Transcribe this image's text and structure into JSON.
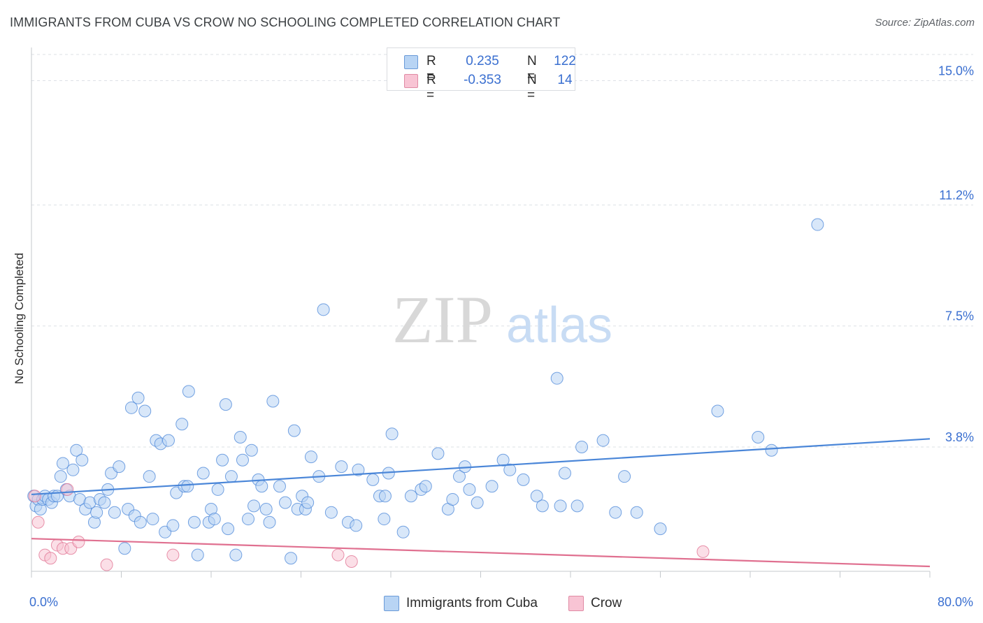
{
  "header": {
    "title": "IMMIGRANTS FROM CUBA VS CROW NO SCHOOLING COMPLETED CORRELATION CHART",
    "source": "Source: ZipAtlas.com"
  },
  "watermark": {
    "zip": "ZIP",
    "atlas": "atlas"
  },
  "legend": {
    "rows": [
      {
        "r_label": "R =",
        "r_value": "0.235",
        "n_label": "N =",
        "n_value": "122",
        "color": "#a8c8f0"
      },
      {
        "r_label": "R =",
        "r_value": "-0.353",
        "n_label": "N =",
        "n_value": "14",
        "color": "#f6b8c8"
      }
    ]
  },
  "bottom_legend": [
    {
      "label": "Immigrants from Cuba",
      "color": "#a8c8f0"
    },
    {
      "label": "Crow",
      "color": "#f6b8c8"
    }
  ],
  "chart_data": {
    "type": "scatter",
    "xlabel": "",
    "ylabel": "No Schooling Completed",
    "xlim": [
      0,
      80
    ],
    "ylim": [
      0,
      15.8
    ],
    "x_tick_labels": [
      "0.0%",
      "80.0%"
    ],
    "y_ticks": [
      3.8,
      7.5,
      11.2,
      15.0
    ],
    "y_tick_labels": [
      "3.8%",
      "7.5%",
      "11.2%",
      "15.0%"
    ],
    "grid": true,
    "legend_position": "top-center",
    "series": [
      {
        "name": "Immigrants from Cuba",
        "color": "#4a86d8",
        "fill": "#b8d4f4",
        "trend": {
          "x0": 0,
          "y0": 2.35,
          "x1": 80,
          "y1": 4.05
        },
        "points": [
          [
            0.2,
            2.3
          ],
          [
            0.4,
            2.0
          ],
          [
            0.6,
            2.2
          ],
          [
            0.8,
            1.9
          ],
          [
            1.0,
            2.2
          ],
          [
            1.2,
            2.3
          ],
          [
            1.5,
            2.2
          ],
          [
            1.8,
            2.1
          ],
          [
            2.0,
            2.3
          ],
          [
            2.3,
            2.3
          ],
          [
            2.6,
            2.9
          ],
          [
            2.8,
            3.3
          ],
          [
            3.1,
            2.5
          ],
          [
            3.4,
            2.3
          ],
          [
            3.7,
            3.1
          ],
          [
            4.0,
            3.7
          ],
          [
            4.3,
            2.2
          ],
          [
            4.5,
            3.4
          ],
          [
            4.8,
            1.9
          ],
          [
            5.2,
            2.1
          ],
          [
            5.6,
            1.5
          ],
          [
            5.8,
            1.8
          ],
          [
            6.1,
            2.2
          ],
          [
            6.5,
            2.1
          ],
          [
            6.8,
            2.5
          ],
          [
            7.1,
            3.0
          ],
          [
            7.4,
            1.8
          ],
          [
            7.8,
            3.2
          ],
          [
            8.3,
            0.7
          ],
          [
            8.6,
            1.9
          ],
          [
            8.9,
            5.0
          ],
          [
            9.2,
            1.7
          ],
          [
            9.5,
            5.3
          ],
          [
            9.7,
            1.5
          ],
          [
            10.1,
            4.9
          ],
          [
            10.5,
            2.9
          ],
          [
            10.8,
            1.6
          ],
          [
            11.1,
            4.0
          ],
          [
            11.5,
            3.9
          ],
          [
            11.9,
            1.2
          ],
          [
            12.2,
            4.0
          ],
          [
            12.6,
            1.4
          ],
          [
            12.9,
            2.4
          ],
          [
            13.4,
            4.5
          ],
          [
            13.6,
            2.6
          ],
          [
            13.9,
            2.6
          ],
          [
            14.0,
            5.5
          ],
          [
            14.5,
            1.5
          ],
          [
            14.8,
            0.5
          ],
          [
            15.3,
            3.0
          ],
          [
            15.8,
            1.5
          ],
          [
            16.0,
            1.9
          ],
          [
            16.3,
            1.6
          ],
          [
            16.6,
            2.5
          ],
          [
            17.0,
            3.4
          ],
          [
            17.3,
            5.1
          ],
          [
            17.5,
            1.3
          ],
          [
            17.8,
            2.9
          ],
          [
            18.2,
            0.5
          ],
          [
            18.6,
            4.1
          ],
          [
            18.8,
            3.4
          ],
          [
            19.3,
            1.6
          ],
          [
            19.6,
            3.7
          ],
          [
            19.8,
            2.0
          ],
          [
            20.2,
            2.8
          ],
          [
            20.5,
            2.6
          ],
          [
            20.9,
            1.9
          ],
          [
            21.2,
            1.5
          ],
          [
            21.5,
            5.2
          ],
          [
            22.1,
            2.6
          ],
          [
            22.6,
            2.1
          ],
          [
            23.1,
            0.4
          ],
          [
            23.4,
            4.3
          ],
          [
            23.7,
            1.9
          ],
          [
            24.1,
            2.3
          ],
          [
            24.4,
            1.9
          ],
          [
            24.6,
            2.1
          ],
          [
            24.9,
            3.5
          ],
          [
            25.6,
            2.9
          ],
          [
            26.0,
            8.0
          ],
          [
            26.7,
            1.8
          ],
          [
            27.6,
            3.2
          ],
          [
            28.2,
            1.5
          ],
          [
            28.9,
            1.4
          ],
          [
            29.1,
            3.1
          ],
          [
            30.4,
            2.8
          ],
          [
            31.0,
            2.3
          ],
          [
            31.4,
            1.6
          ],
          [
            31.5,
            2.3
          ],
          [
            31.8,
            3.0
          ],
          [
            32.1,
            4.2
          ],
          [
            33.1,
            1.2
          ],
          [
            33.8,
            2.3
          ],
          [
            34.7,
            2.5
          ],
          [
            35.1,
            2.6
          ],
          [
            36.2,
            3.6
          ],
          [
            37.1,
            1.9
          ],
          [
            37.5,
            2.2
          ],
          [
            38.1,
            2.9
          ],
          [
            38.6,
            3.2
          ],
          [
            39.0,
            2.5
          ],
          [
            39.7,
            2.1
          ],
          [
            41.0,
            2.6
          ],
          [
            42.0,
            3.4
          ],
          [
            42.6,
            3.1
          ],
          [
            43.8,
            2.8
          ],
          [
            45.0,
            2.3
          ],
          [
            45.5,
            2.0
          ],
          [
            46.8,
            5.9
          ],
          [
            47.1,
            2.0
          ],
          [
            47.5,
            3.0
          ],
          [
            48.6,
            2.0
          ],
          [
            49.0,
            3.8
          ],
          [
            50.9,
            4.0
          ],
          [
            52.0,
            1.8
          ],
          [
            52.8,
            2.9
          ],
          [
            53.9,
            1.8
          ],
          [
            56.0,
            1.3
          ],
          [
            61.1,
            4.9
          ],
          [
            64.7,
            4.1
          ],
          [
            65.9,
            3.7
          ],
          [
            70.0,
            10.6
          ]
        ]
      },
      {
        "name": "Crow",
        "color": "#e07090",
        "fill": "#f8c4d4",
        "trend": {
          "x0": 0,
          "y0": 1.0,
          "x1": 80,
          "y1": 0.15
        },
        "points": [
          [
            0.3,
            2.3
          ],
          [
            0.6,
            1.5
          ],
          [
            1.2,
            0.5
          ],
          [
            1.7,
            0.4
          ],
          [
            2.3,
            0.8
          ],
          [
            2.8,
            0.7
          ],
          [
            3.2,
            2.5
          ],
          [
            3.5,
            0.7
          ],
          [
            4.2,
            0.9
          ],
          [
            6.7,
            0.2
          ],
          [
            12.6,
            0.5
          ],
          [
            27.3,
            0.5
          ],
          [
            28.5,
            0.3
          ],
          [
            59.8,
            0.6
          ]
        ]
      }
    ]
  }
}
